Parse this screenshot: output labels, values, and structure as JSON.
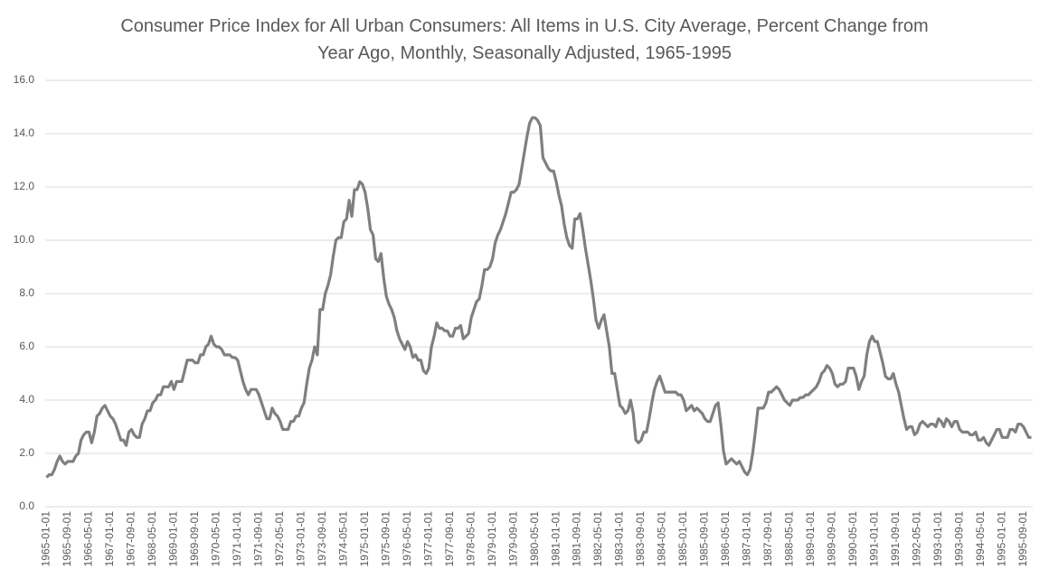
{
  "chart_data": {
    "type": "line",
    "title": "Consumer Price Index for All Urban Consumers: All Items in U.S. City Average, Percent Change from Year Ago, Monthly, Seasonally Adjusted, 1965-1995",
    "categories": [
      "1965-01-01",
      null,
      null,
      null,
      null,
      null,
      null,
      null,
      "1965-09-01",
      null,
      null,
      null,
      null,
      null,
      null,
      null,
      "1966-05-01",
      null,
      null,
      null,
      null,
      null,
      null,
      null,
      "1967-01-01",
      null,
      null,
      null,
      null,
      null,
      null,
      null,
      "1967-09-01",
      null,
      null,
      null,
      null,
      null,
      null,
      null,
      "1968-05-01",
      null,
      null,
      null,
      null,
      null,
      null,
      null,
      "1969-01-01",
      null,
      null,
      null,
      null,
      null,
      null,
      null,
      "1969-09-01",
      null,
      null,
      null,
      null,
      null,
      null,
      null,
      "1970-05-01",
      null,
      null,
      null,
      null,
      null,
      null,
      null,
      "1971-01-01",
      null,
      null,
      null,
      null,
      null,
      null,
      null,
      "1971-09-01",
      null,
      null,
      null,
      null,
      null,
      null,
      null,
      "1972-05-01",
      null,
      null,
      null,
      null,
      null,
      null,
      null,
      "1973-01-01",
      null,
      null,
      null,
      null,
      null,
      null,
      null,
      "1973-09-01",
      null,
      null,
      null,
      null,
      null,
      null,
      null,
      "1974-05-01",
      null,
      null,
      null,
      null,
      null,
      null,
      null,
      "1975-01-01",
      null,
      null,
      null,
      null,
      null,
      null,
      null,
      "1975-09-01",
      null,
      null,
      null,
      null,
      null,
      null,
      null,
      "1976-05-01",
      null,
      null,
      null,
      null,
      null,
      null,
      null,
      "1977-01-01",
      null,
      null,
      null,
      null,
      null,
      null,
      null,
      "1977-09-01",
      null,
      null,
      null,
      null,
      null,
      null,
      null,
      "1978-05-01",
      null,
      null,
      null,
      null,
      null,
      null,
      null,
      "1979-01-01",
      null,
      null,
      null,
      null,
      null,
      null,
      null,
      "1979-09-01",
      null,
      null,
      null,
      null,
      null,
      null,
      null,
      "1980-05-01",
      null,
      null,
      null,
      null,
      null,
      null,
      null,
      "1981-01-01",
      null,
      null,
      null,
      null,
      null,
      null,
      null,
      "1981-09-01",
      null,
      null,
      null,
      null,
      null,
      null,
      null,
      "1982-05-01",
      null,
      null,
      null,
      null,
      null,
      null,
      null,
      "1983-01-01",
      null,
      null,
      null,
      null,
      null,
      null,
      null,
      "1983-09-01",
      null,
      null,
      null,
      null,
      null,
      null,
      null,
      "1984-05-01",
      null,
      null,
      null,
      null,
      null,
      null,
      null,
      "1985-01-01",
      null,
      null,
      null,
      null,
      null,
      null,
      null,
      "1985-09-01",
      null,
      null,
      null,
      null,
      null,
      null,
      null,
      "1986-05-01",
      null,
      null,
      null,
      null,
      null,
      null,
      null,
      "1987-01-01",
      null,
      null,
      null,
      null,
      null,
      null,
      null,
      "1987-09-01",
      null,
      null,
      null,
      null,
      null,
      null,
      null,
      "1988-05-01",
      null,
      null,
      null,
      null,
      null,
      null,
      null,
      "1989-01-01",
      null,
      null,
      null,
      null,
      null,
      null,
      null,
      "1989-09-01",
      null,
      null,
      null,
      null,
      null,
      null,
      null,
      "1990-05-01",
      null,
      null,
      null,
      null,
      null,
      null,
      null,
      "1991-01-01",
      null,
      null,
      null,
      null,
      null,
      null,
      null,
      "1991-09-01",
      null,
      null,
      null,
      null,
      null,
      null,
      null,
      "1992-05-01",
      null,
      null,
      null,
      null,
      null,
      null,
      null,
      "1993-01-01",
      null,
      null,
      null,
      null,
      null,
      null,
      null,
      "1993-09-01",
      null,
      null,
      null,
      null,
      null,
      null,
      null,
      "1994-05-01",
      null,
      null,
      null,
      null,
      null,
      null,
      null,
      "1995-01-01",
      null,
      null,
      null,
      null,
      null,
      null,
      null,
      "1995-09-01",
      null,
      null,
      null
    ],
    "values": [
      1.1,
      1.2,
      1.2,
      1.4,
      1.7,
      1.9,
      1.7,
      1.6,
      1.7,
      1.7,
      1.7,
      1.9,
      2.0,
      2.5,
      2.7,
      2.8,
      2.8,
      2.4,
      2.8,
      3.4,
      3.5,
      3.7,
      3.8,
      3.6,
      3.4,
      3.3,
      3.1,
      2.8,
      2.5,
      2.5,
      2.3,
      2.8,
      2.9,
      2.7,
      2.6,
      2.6,
      3.1,
      3.3,
      3.6,
      3.6,
      3.9,
      4.0,
      4.2,
      4.2,
      4.5,
      4.5,
      4.5,
      4.7,
      4.4,
      4.7,
      4.7,
      4.7,
      5.1,
      5.5,
      5.5,
      5.5,
      5.4,
      5.4,
      5.7,
      5.7,
      6.0,
      6.1,
      6.4,
      6.1,
      6.0,
      6.0,
      5.9,
      5.7,
      5.7,
      5.7,
      5.6,
      5.6,
      5.5,
      5.1,
      4.7,
      4.4,
      4.2,
      4.4,
      4.4,
      4.4,
      4.2,
      3.9,
      3.6,
      3.3,
      3.3,
      3.7,
      3.5,
      3.4,
      3.2,
      2.9,
      2.9,
      2.9,
      3.2,
      3.2,
      3.4,
      3.4,
      3.7,
      3.9,
      4.6,
      5.2,
      5.5,
      6.0,
      5.7,
      7.4,
      7.4,
      8.0,
      8.3,
      8.7,
      9.4,
      10.0,
      10.1,
      10.1,
      10.7,
      10.8,
      11.5,
      10.9,
      11.9,
      11.9,
      12.2,
      12.1,
      11.8,
      11.2,
      10.4,
      10.2,
      9.3,
      9.2,
      9.5,
      8.6,
      7.9,
      7.6,
      7.4,
      7.1,
      6.6,
      6.3,
      6.1,
      5.9,
      6.2,
      6.0,
      5.6,
      5.7,
      5.5,
      5.5,
      5.1,
      5.0,
      5.2,
      6.0,
      6.4,
      6.9,
      6.7,
      6.7,
      6.6,
      6.6,
      6.4,
      6.4,
      6.7,
      6.7,
      6.8,
      6.3,
      6.4,
      6.5,
      7.1,
      7.4,
      7.7,
      7.8,
      8.3,
      8.9,
      8.9,
      9.0,
      9.3,
      9.9,
      10.2,
      10.4,
      10.7,
      11.0,
      11.4,
      11.8,
      11.8,
      11.9,
      12.1,
      12.7,
      13.3,
      13.9,
      14.4,
      14.6,
      14.6,
      14.5,
      14.3,
      13.1,
      12.9,
      12.7,
      12.6,
      12.6,
      12.2,
      11.7,
      11.3,
      10.6,
      10.1,
      9.8,
      9.7,
      10.8,
      10.8,
      11.0,
      10.4,
      9.7,
      9.1,
      8.5,
      7.8,
      7.0,
      6.7,
      7.0,
      7.2,
      6.6,
      6.0,
      5.0,
      5.0,
      4.4,
      3.8,
      3.7,
      3.5,
      3.6,
      4.0,
      3.5,
      2.5,
      2.4,
      2.5,
      2.8,
      2.8,
      3.3,
      3.9,
      4.4,
      4.7,
      4.9,
      4.6,
      4.3,
      4.3,
      4.3,
      4.3,
      4.3,
      4.2,
      4.2,
      4.0,
      3.6,
      3.7,
      3.8,
      3.6,
      3.7,
      3.6,
      3.5,
      3.3,
      3.2,
      3.2,
      3.5,
      3.8,
      3.9,
      3.1,
      2.1,
      1.6,
      1.7,
      1.8,
      1.7,
      1.6,
      1.7,
      1.5,
      1.3,
      1.2,
      1.4,
      2.0,
      2.8,
      3.7,
      3.7,
      3.7,
      3.9,
      4.3,
      4.3,
      4.4,
      4.5,
      4.4,
      4.2,
      4.0,
      3.9,
      3.8,
      4.0,
      4.0,
      4.0,
      4.1,
      4.1,
      4.2,
      4.2,
      4.3,
      4.4,
      4.5,
      4.7,
      5.0,
      5.1,
      5.3,
      5.2,
      5.0,
      4.6,
      4.5,
      4.6,
      4.6,
      4.7,
      5.2,
      5.2,
      5.2,
      4.9,
      4.4,
      4.7,
      4.9,
      5.7,
      6.2,
      6.4,
      6.2,
      6.2,
      5.8,
      5.4,
      4.9,
      4.8,
      4.8,
      5.0,
      4.6,
      4.3,
      3.8,
      3.3,
      2.9,
      3.0,
      3.0,
      2.7,
      2.8,
      3.1,
      3.2,
      3.1,
      3.0,
      3.1,
      3.1,
      3.0,
      3.3,
      3.2,
      3.0,
      3.3,
      3.2,
      3.0,
      3.2,
      3.2,
      2.9,
      2.8,
      2.8,
      2.8,
      2.7,
      2.7,
      2.8,
      2.5,
      2.5,
      2.6,
      2.4,
      2.3,
      2.5,
      2.7,
      2.9,
      2.9,
      2.6,
      2.6,
      2.6,
      2.9,
      2.9,
      2.8,
      3.1,
      3.1,
      3.0,
      2.8,
      2.6,
      2.6
    ],
    "color": "#7f7f7f",
    "ylim": [
      0,
      16
    ],
    "yticks": [
      {
        "value": 0,
        "label": "0.0"
      },
      {
        "value": 2,
        "label": "2.0"
      },
      {
        "value": 4,
        "label": "4.0"
      },
      {
        "value": 6,
        "label": "6.0"
      },
      {
        "value": 8,
        "label": "8.0"
      },
      {
        "value": 10,
        "label": "10.0"
      },
      {
        "value": 12,
        "label": "12.0"
      },
      {
        "value": 14,
        "label": "14.0"
      },
      {
        "value": 16,
        "label": "16.0"
      }
    ],
    "grid": true
  }
}
